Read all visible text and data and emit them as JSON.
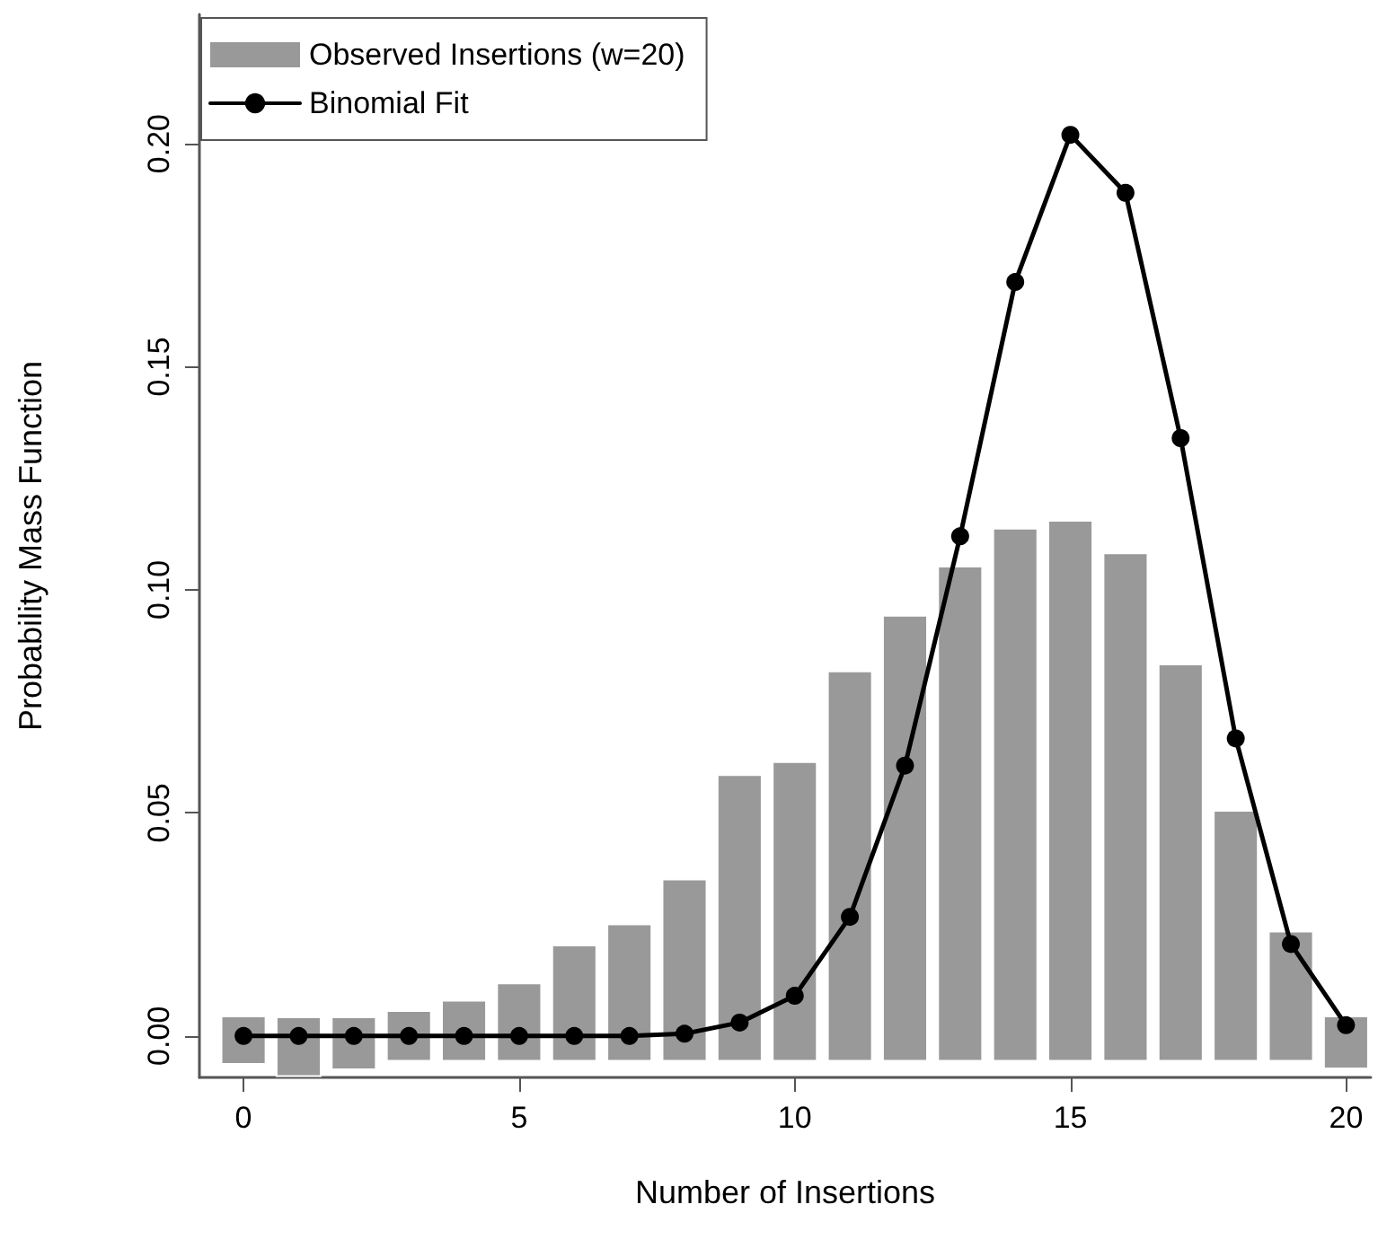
{
  "chart_data": {
    "type": "bar",
    "xlabel": "Number of Insertions",
    "ylabel": "Probability Mass Function",
    "x": [
      0,
      1,
      2,
      3,
      4,
      5,
      6,
      7,
      8,
      9,
      10,
      11,
      12,
      13,
      14,
      15,
      16,
      17,
      18,
      19,
      20
    ],
    "series": [
      {
        "name": "Observed Insertions (w=20)",
        "color": "#999999",
        "base": [
          -0.0063,
          -0.009,
          -0.0075,
          -0.0056,
          -0.0056,
          -0.0056,
          -0.0056,
          -0.0056,
          -0.0056,
          -0.0056,
          -0.0056,
          -0.0056,
          -0.0056,
          -0.0056,
          -0.0056,
          -0.0056,
          -0.0056,
          -0.0056,
          -0.0056,
          -0.0056,
          -0.0073
        ],
        "values": [
          0.0107,
          0.0132,
          0.0117,
          0.0112,
          0.0135,
          0.0174,
          0.0259,
          0.0306,
          0.0407,
          0.0641,
          0.067,
          0.0873,
          0.0998,
          0.1108,
          0.1193,
          0.1211,
          0.1138,
          0.0889,
          0.0561,
          0.029,
          0.0117
        ]
      },
      {
        "name": "Binomial Fit",
        "type": "line",
        "color": "#000000",
        "marker": "circle",
        "line_style": "solid",
        "values": [
          0,
          0,
          0,
          0,
          0,
          0,
          0,
          0,
          0.0005,
          0.003,
          0.009,
          0.0267,
          0.0606,
          0.112,
          0.169,
          0.202,
          0.189,
          0.134,
          0.0667,
          0.0206,
          0.0024
        ]
      }
    ],
    "xlim": [
      -0.8,
      20.45
    ],
    "xticks": [
      0,
      5,
      10,
      15,
      20
    ],
    "ylim": [
      -0.0093,
      0.229
    ],
    "yticks": [
      {
        "value": 0,
        "label": "0.00"
      },
      0.05,
      {
        "value": 0.1,
        "label": "0.10"
      },
      0.15,
      {
        "value": 0.2,
        "label": "0.20"
      }
    ],
    "grid": false,
    "legend": "top left"
  }
}
